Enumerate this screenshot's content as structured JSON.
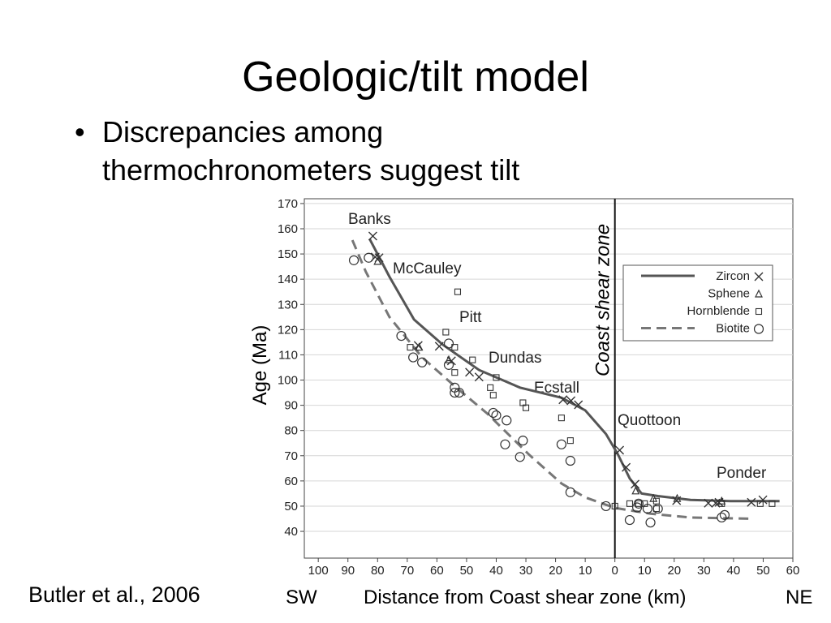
{
  "slide": {
    "title": "Geologic/tilt model",
    "bullet_lines": [
      "Discrepancies among",
      "thermochronometers suggest tilt"
    ],
    "citation": "Butler et al., 2006"
  },
  "chart_data": {
    "type": "scatter",
    "xlabel": "Distance from Coast shear zone (km)",
    "xlabel_left": "SW",
    "xlabel_right": "NE",
    "ylabel": "Age (Ma)",
    "xlim": [
      -104.7,
      60
    ],
    "ylim": [
      29.4,
      171.9
    ],
    "xticks": [
      {
        "value": -100,
        "label": "100"
      },
      {
        "value": -90,
        "label": "90"
      },
      {
        "value": -80,
        "label": "80"
      },
      {
        "value": -70,
        "label": "70"
      },
      {
        "value": -60,
        "label": "60"
      },
      {
        "value": -50,
        "label": "50"
      },
      {
        "value": -40,
        "label": "40"
      },
      {
        "value": -30,
        "label": "30"
      },
      {
        "value": -20,
        "label": "20"
      },
      {
        "value": -10,
        "label": "10"
      },
      0,
      10,
      20,
      30,
      40,
      50,
      60
    ],
    "yticks": [
      40,
      50,
      60,
      70,
      80,
      90,
      100,
      110,
      120,
      130,
      140,
      150,
      160,
      170
    ],
    "grid": true,
    "legend": "upper right",
    "zero_line": {
      "x": 0,
      "label": "Coast shear zone"
    },
    "annotations": [
      "Banks",
      "McCauley",
      "Pitt",
      "Dundas",
      "Ecstall",
      "Quottoon",
      "Ponder"
    ],
    "series": [
      {
        "name": "Zircon",
        "marker": "x",
        "color": "#333333",
        "x": [
          -81.6,
          -80.8,
          -79.5,
          -66.3,
          -59.2,
          -55.1,
          -49,
          -45.8,
          -17.5,
          -14.8,
          -12.3,
          1.6,
          3.8,
          6.8,
          20.8,
          31.5,
          34,
          35.1,
          46,
          49.9
        ],
        "values": [
          157.1,
          148.8,
          148.5,
          113.7,
          113.4,
          107.6,
          103.1,
          101.2,
          92.2,
          91.8,
          90.2,
          72.2,
          65.4,
          58.7,
          52.2,
          51.2,
          51.2,
          51.5,
          51.5,
          52.5
        ],
        "line": {
          "style": "solid",
          "color": "#555555",
          "x": [
            -82.7,
            -76,
            -67.7,
            -58,
            -45.8,
            -32,
            -18,
            -10,
            -3,
            1,
            5,
            9,
            14.5,
            25.5,
            39,
            55.5
          ],
          "values": [
            156,
            141,
            124,
            114,
            104,
            97,
            93,
            88,
            78.6,
            70.6,
            61,
            55,
            54,
            52.5,
            52,
            52
          ]
        }
      },
      {
        "name": "Sphene",
        "marker": "triangle",
        "color": "#333333",
        "x": [
          -80,
          -66,
          -56,
          7,
          13,
          21,
          36
        ],
        "values": [
          147,
          113,
          108,
          56,
          53,
          53,
          52
        ]
      },
      {
        "name": "Hornblende",
        "marker": "square",
        "color": "#333333",
        "x": [
          -53,
          -57,
          -69,
          -54,
          -48,
          -54,
          -40,
          -42,
          -41,
          -31,
          -30,
          -18,
          -15,
          0,
          5,
          8,
          10,
          14,
          14,
          36,
          49,
          53
        ],
        "values": [
          135,
          119,
          113,
          113,
          108,
          103,
          101,
          97,
          94,
          91,
          89,
          85,
          76,
          50,
          51,
          51,
          51,
          52,
          49,
          51,
          51,
          51
        ]
      },
      {
        "name": "Biotite",
        "marker": "circle",
        "color": "#333333",
        "x": [
          -88,
          -83,
          -72,
          -68,
          -65,
          -56,
          -56,
          -54,
          -54,
          -52.5,
          -41,
          -40,
          -36.5,
          -37,
          -31,
          -32,
          -18,
          -15,
          -15,
          -3,
          5,
          7.5,
          8,
          11,
          12,
          14.5,
          36,
          37
        ],
        "values": [
          147.5,
          148.5,
          117.5,
          109,
          107,
          114.5,
          106,
          97,
          95,
          95,
          87,
          86,
          84,
          74.5,
          76,
          69.5,
          74.5,
          68,
          55.5,
          50,
          44.5,
          49.5,
          51,
          49,
          43.5,
          49,
          45.5,
          46.5
        ],
        "line": {
          "style": "dashed",
          "color": "#777777",
          "x": [
            -88.5,
            -84,
            -76,
            -65,
            -54,
            -43,
            -29,
            -18,
            -10,
            0,
            12,
            25.5,
            46
          ],
          "values": [
            155.5,
            143,
            125,
            109,
            97.6,
            86.7,
            70.5,
            59,
            53.5,
            49.3,
            47,
            45.5,
            45
          ]
        }
      }
    ]
  }
}
